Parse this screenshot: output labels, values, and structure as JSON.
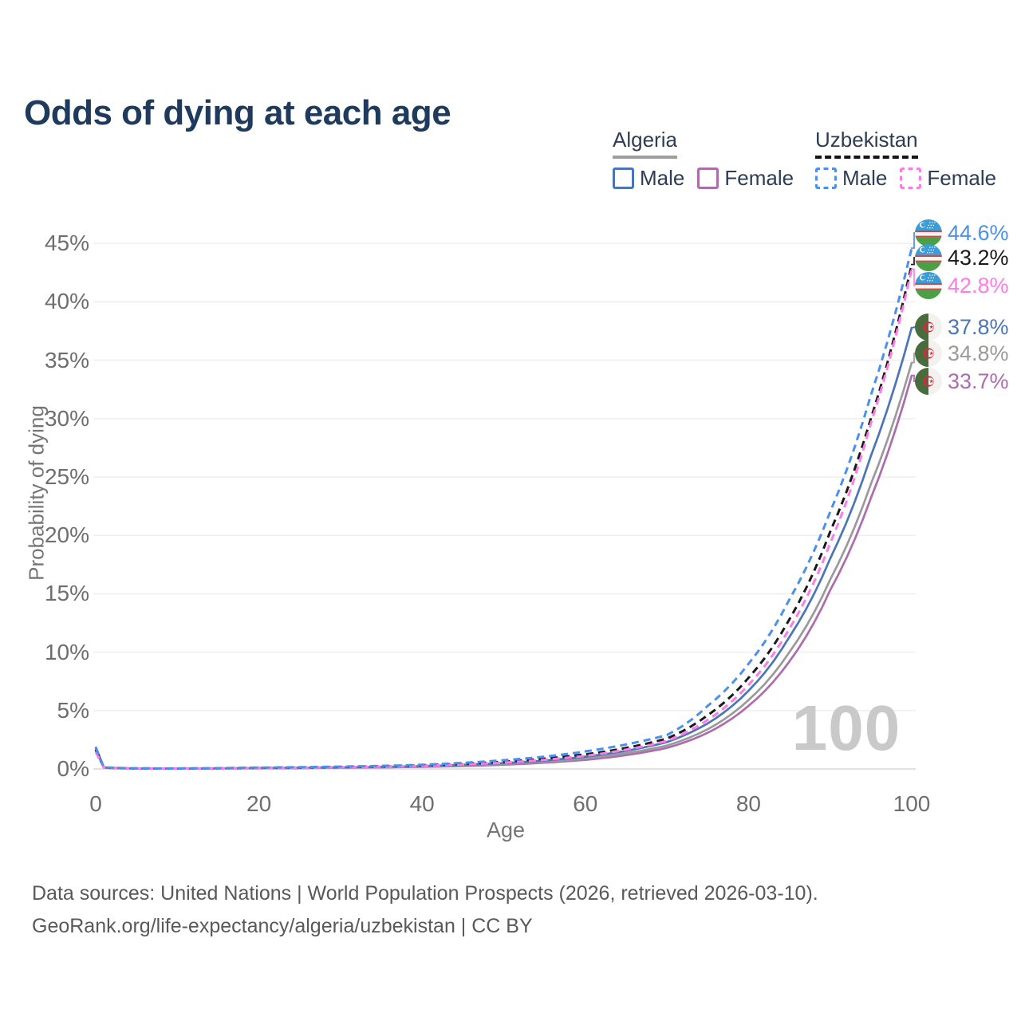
{
  "title": "Odds of dying at each age",
  "watermark": "100",
  "legend": {
    "algeria": {
      "name": "Algeria",
      "male": "Male",
      "female": "Female"
    },
    "uzbekistan": {
      "name": "Uzbekistan",
      "male": "Male",
      "female": "Female"
    }
  },
  "axes": {
    "y_label": "Probability of dying",
    "x_label": "Age",
    "y_ticks": [
      {
        "label": "45%",
        "value": 45
      },
      {
        "label": "40%",
        "value": 40
      },
      {
        "label": "35%",
        "value": 35
      },
      {
        "label": "30%",
        "value": 30
      },
      {
        "label": "25%",
        "value": 25
      },
      {
        "label": "20%",
        "value": 20
      },
      {
        "label": "15%",
        "value": 15
      },
      {
        "label": "10%",
        "value": 10
      },
      {
        "label": "5%",
        "value": 5
      },
      {
        "label": "0%",
        "value": 0
      }
    ],
    "x_ticks": [
      {
        "label": "0",
        "value": 0
      },
      {
        "label": "20",
        "value": 20
      },
      {
        "label": "40",
        "value": 40
      },
      {
        "label": "60",
        "value": 60
      },
      {
        "label": "80",
        "value": 80
      },
      {
        "label": "100",
        "value": 100
      }
    ]
  },
  "colors": {
    "title": "#1e3a5c",
    "legend_text": "#2e3c55",
    "algeria_underline": "#9e9e9e",
    "uzbekistan_underline": "#141414",
    "algeria_male": "#4a76b8",
    "algeria_female": "#ad6cae",
    "algeria_both": "#9a9a9a",
    "uzbekistan_male": "#4a90ec",
    "uzbekistan_female": "#ff7ae6",
    "uzbekistan_both": "#1a1a1a",
    "grid": "#efefef",
    "zero_line": "#e2e2e2",
    "axis_text": "#6e6e6e",
    "watermark": "#c9c9c9"
  },
  "footer": {
    "line1": "Data sources: United Nations | World Population Prospects (2026, retrieved 2026-03-10).",
    "line2": "GeoRank.org/life-expectancy/algeria/uzbekistan | CC BY"
  },
  "chart_data": {
    "type": "line",
    "title": "Odds of dying at each age",
    "xlabel": "Age",
    "ylabel": "Probability of dying",
    "xlim": [
      0,
      100
    ],
    "ylim": [
      0,
      45
    ],
    "y_unit": "%",
    "grid": "horizontal",
    "legend_position": "top-right",
    "ages": [
      0,
      1,
      5,
      10,
      15,
      20,
      25,
      30,
      35,
      40,
      45,
      50,
      55,
      60,
      65,
      70,
      75,
      80,
      85,
      90,
      95,
      100
    ],
    "series": [
      {
        "name": "Uzbekistan Male",
        "country": "Uzbekistan",
        "sex": "male",
        "style": "dashed",
        "color_key": "uzbekistan_male",
        "flag": "uzbekistan",
        "end_label": "44.6%",
        "values": [
          1.8,
          0.14,
          0.05,
          0.04,
          0.07,
          0.12,
          0.15,
          0.2,
          0.26,
          0.36,
          0.52,
          0.75,
          1.05,
          1.5,
          2.1,
          2.9,
          5.4,
          9.0,
          14.5,
          22.0,
          32.0,
          44.6
        ]
      },
      {
        "name": "Uzbekistan Both sexes",
        "country": "Uzbekistan",
        "sex": "both",
        "style": "dashed",
        "color_key": "uzbekistan_both",
        "flag": "uzbekistan",
        "end_label": "43.2%",
        "values": [
          1.65,
          0.12,
          0.04,
          0.035,
          0.06,
          0.1,
          0.13,
          0.17,
          0.22,
          0.31,
          0.44,
          0.62,
          0.88,
          1.25,
          1.8,
          2.6,
          4.6,
          7.8,
          12.8,
          20.3,
          30.0,
          43.2
        ]
      },
      {
        "name": "Uzbekistan Female",
        "country": "Uzbekistan",
        "sex": "female",
        "style": "dashed",
        "color_key": "uzbekistan_female",
        "flag": "uzbekistan",
        "end_label": "42.8%",
        "values": [
          1.45,
          0.11,
          0.04,
          0.03,
          0.05,
          0.08,
          0.1,
          0.14,
          0.19,
          0.27,
          0.38,
          0.54,
          0.78,
          1.12,
          1.65,
          2.4,
          4.2,
          7.2,
          12.0,
          19.3,
          29.6,
          42.8
        ]
      },
      {
        "name": "Algeria Male",
        "country": "Algeria",
        "sex": "male",
        "style": "solid",
        "color_key": "algeria_male",
        "flag": "algeria",
        "end_label": "37.8%",
        "values": [
          1.9,
          0.13,
          0.04,
          0.03,
          0.05,
          0.09,
          0.11,
          0.14,
          0.18,
          0.25,
          0.35,
          0.5,
          0.72,
          1.05,
          1.55,
          2.3,
          3.9,
          6.7,
          11.3,
          18.0,
          26.8,
          37.8
        ]
      },
      {
        "name": "Algeria Both sexes",
        "country": "Algeria",
        "sex": "both",
        "style": "solid",
        "color_key": "algeria_both",
        "flag": "algeria",
        "end_label": "34.8%",
        "values": [
          1.75,
          0.12,
          0.04,
          0.03,
          0.04,
          0.07,
          0.09,
          0.12,
          0.15,
          0.21,
          0.3,
          0.43,
          0.62,
          0.9,
          1.35,
          2.0,
          3.4,
          5.9,
          10.0,
          16.2,
          24.4,
          34.8
        ]
      },
      {
        "name": "Algeria Female",
        "country": "Algeria",
        "sex": "female",
        "style": "solid",
        "color_key": "algeria_female",
        "flag": "algeria",
        "end_label": "33.7%",
        "values": [
          1.6,
          0.11,
          0.03,
          0.025,
          0.04,
          0.05,
          0.07,
          0.1,
          0.13,
          0.18,
          0.25,
          0.36,
          0.53,
          0.78,
          1.18,
          1.8,
          3.1,
          5.4,
          9.2,
          15.3,
          23.2,
          33.7
        ]
      }
    ]
  }
}
